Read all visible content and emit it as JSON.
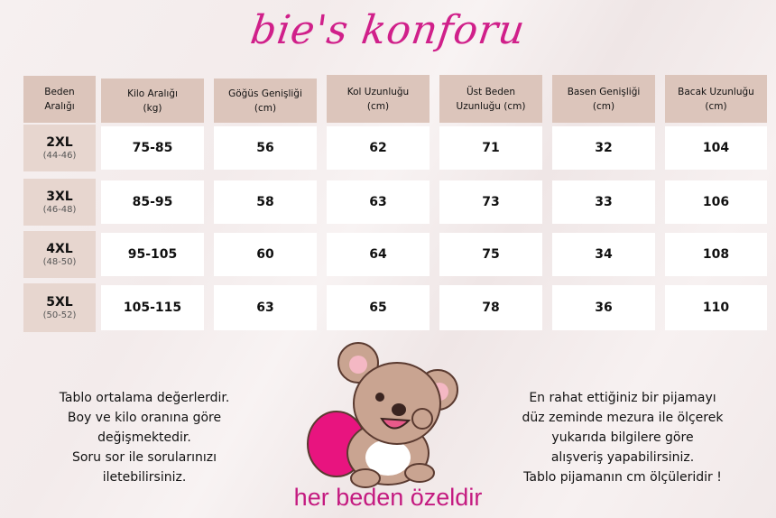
{
  "brand": "bie's konforu",
  "table": {
    "headers": [
      [
        "Beden",
        "Aralığı"
      ],
      [
        "Kilo Aralığı",
        "(kg)"
      ],
      [
        "Göğüs Genişliği",
        "(cm)"
      ],
      [
        "Kol Uzunluğu",
        "(cm)"
      ],
      [
        "Üst Beden",
        "Uzunluğu (cm)"
      ],
      [
        "Basen Genişliği",
        "(cm)"
      ],
      [
        "Bacak Uzunluğu",
        "(cm)"
      ]
    ],
    "rows": [
      {
        "size": "2XL",
        "range": "(44-46)",
        "values": [
          "75-85",
          "56",
          "62",
          "71",
          "32",
          "104"
        ]
      },
      {
        "size": "3XL",
        "range": "(46-48)",
        "values": [
          "85-95",
          "58",
          "63",
          "73",
          "33",
          "106"
        ]
      },
      {
        "size": "4XL",
        "range": "(48-50)",
        "values": [
          "95-105",
          "60",
          "64",
          "75",
          "34",
          "108"
        ]
      },
      {
        "size": "5XL",
        "range": "(50-52)",
        "values": [
          "105-115",
          "63",
          "65",
          "78",
          "36",
          "110"
        ]
      }
    ]
  },
  "left_note": [
    "Tablo ortalama değerlerdir.",
    "Boy ve kilo oranına göre",
    "değişmektedir.",
    "Soru sor ile sorularınızı",
    "iletebilirsiniz."
  ],
  "right_note": [
    "En rahat ettiğiniz bir pijamayı",
    "düz zeminde mezura ile ölçerek",
    "yukarıda bilgilere göre",
    "alışveriş yapabilirsiniz.",
    "Tablo pijamanın cm ölçüleridir !"
  ],
  "slogan": "her beden özeldir",
  "colors": {
    "brand": "#d0208a",
    "header": "#dcc5bb",
    "cell": "#ffffff",
    "pillow": "#e8147f",
    "koala": "#c9a491"
  }
}
